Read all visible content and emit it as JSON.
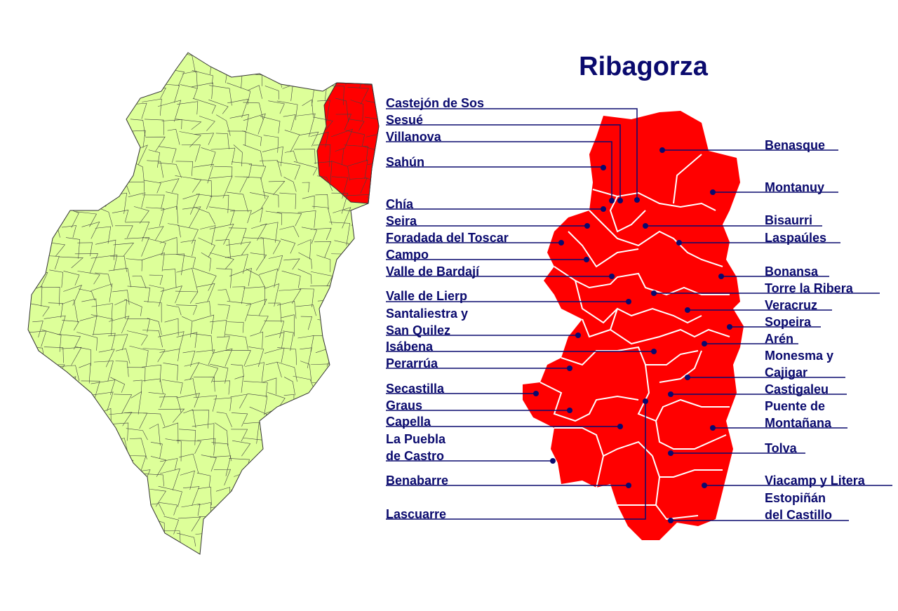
{
  "title": "Ribagorza",
  "colors": {
    "region": "#ff0000",
    "aragon": "#ddff99",
    "borders": "#333333",
    "labels": "#0a0a6e",
    "inner_borders": "#ffffff"
  },
  "left_labels": [
    {
      "lines": [
        "Castejón de Sos"
      ]
    },
    {
      "lines": [
        "Sesué"
      ]
    },
    {
      "lines": [
        "Villanova"
      ]
    },
    {
      "lines": [
        "Sahún"
      ]
    },
    {
      "lines": [
        "Chía"
      ]
    },
    {
      "lines": [
        "Seira"
      ]
    },
    {
      "lines": [
        "Foradada del Toscar"
      ]
    },
    {
      "lines": [
        "Campo"
      ]
    },
    {
      "lines": [
        "Valle de Bardají"
      ]
    },
    {
      "lines": [
        "Valle de Lierp"
      ]
    },
    {
      "lines": [
        "Santaliestra y",
        "San Quilez"
      ]
    },
    {
      "lines": [
        "Isábena"
      ]
    },
    {
      "lines": [
        "Perarrúa"
      ]
    },
    {
      "lines": [
        "Secastilla"
      ]
    },
    {
      "lines": [
        "Graus"
      ]
    },
    {
      "lines": [
        "Capella"
      ]
    },
    {
      "lines": [
        "La Puebla",
        "de Castro"
      ]
    },
    {
      "lines": [
        "Benabarre"
      ]
    },
    {
      "lines": [
        "Lascuarre"
      ]
    }
  ],
  "right_labels": [
    {
      "lines": [
        "Benasque"
      ]
    },
    {
      "lines": [
        "Montanuy"
      ]
    },
    {
      "lines": [
        "Bisaurri"
      ]
    },
    {
      "lines": [
        "Laspaúles"
      ]
    },
    {
      "lines": [
        "Bonansa"
      ]
    },
    {
      "lines": [
        "Torre la Ribera"
      ]
    },
    {
      "lines": [
        "Veracruz"
      ]
    },
    {
      "lines": [
        "Sopeira"
      ]
    },
    {
      "lines": [
        "Arén"
      ]
    },
    {
      "lines": [
        "Monesma y",
        "Cajigar"
      ]
    },
    {
      "lines": [
        "Castigaleu"
      ]
    },
    {
      "lines": [
        "Puente de",
        "Montañana"
      ]
    },
    {
      "lines": [
        "Tolva"
      ]
    },
    {
      "lines": [
        "Viacamp y Litera"
      ]
    },
    {
      "lines": [
        "Estopiñán",
        "del Castillo"
      ]
    }
  ]
}
